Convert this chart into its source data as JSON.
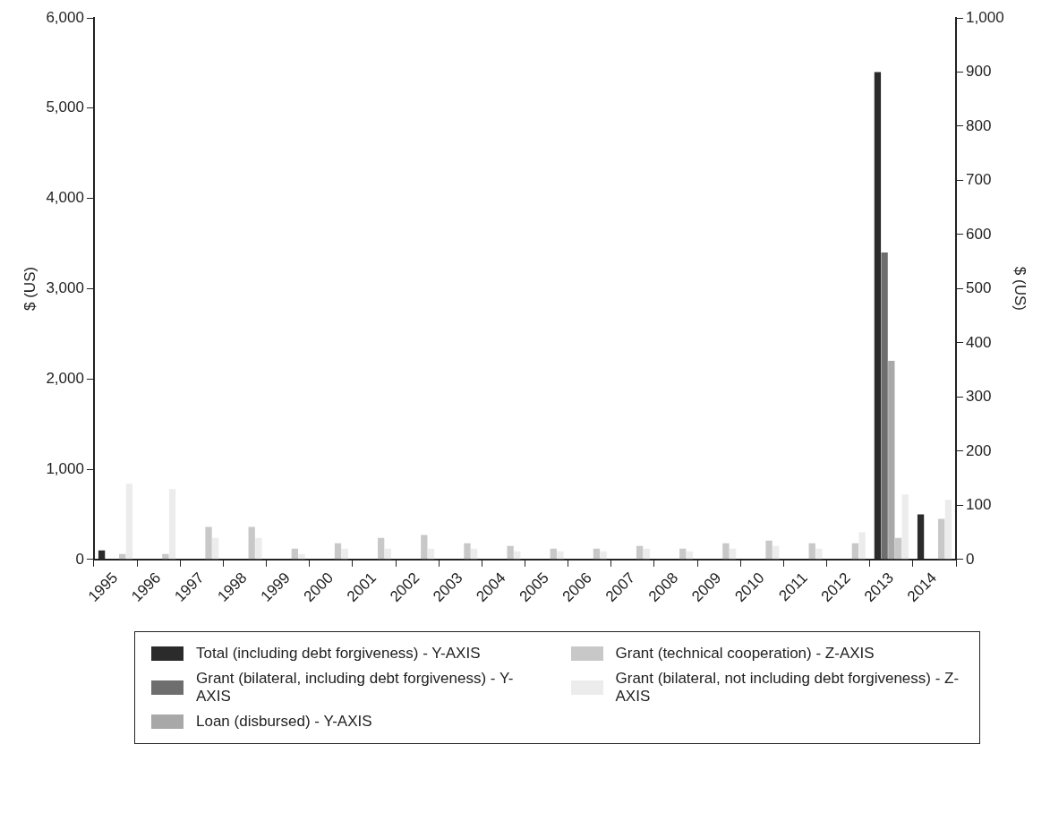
{
  "chart_data": {
    "type": "bar",
    "ylabel": "$ (US)",
    "y2label": "$ (US)",
    "categories": [
      "1995",
      "1996",
      "1997",
      "1998",
      "1999",
      "2000",
      "2001",
      "2002",
      "2003",
      "2004",
      "2005",
      "2006",
      "2007",
      "2008",
      "2009",
      "2010",
      "2011",
      "2012",
      "2013",
      "2014"
    ],
    "series": [
      {
        "name": "Total (including debt forgiveness) - Y-AXIS",
        "color": "#2b2b2b",
        "values": [
          100,
          0,
          0,
          0,
          0,
          0,
          0,
          0,
          0,
          0,
          0,
          0,
          0,
          0,
          0,
          0,
          0,
          0,
          5400,
          500
        ]
      },
      {
        "name": "Grant (bilateral, including debt forgiveness) - Y-AXIS",
        "color": "#6e6e6e",
        "values": [
          0,
          0,
          0,
          0,
          0,
          0,
          0,
          0,
          0,
          0,
          0,
          0,
          0,
          0,
          0,
          0,
          0,
          0,
          3400,
          0
        ]
      },
      {
        "name": "Loan (disbursed) - Y-AXIS",
        "color": "#a8a8a8",
        "values": [
          0,
          0,
          0,
          0,
          0,
          0,
          0,
          0,
          0,
          0,
          0,
          0,
          0,
          0,
          0,
          0,
          0,
          0,
          2200,
          0
        ]
      },
      {
        "name": "Grant (technical cooperation) - Z-AXIS",
        "color": "#c8c8c8",
        "axis": "y2",
        "values": [
          10,
          10,
          60,
          60,
          20,
          30,
          40,
          45,
          30,
          25,
          20,
          20,
          25,
          20,
          30,
          35,
          30,
          30,
          40,
          75
        ]
      },
      {
        "name": "Grant (bilateral, not including debt forgiveness) - Z-AXIS",
        "color": "#ececec",
        "axis": "y2",
        "values": [
          140,
          130,
          40,
          40,
          10,
          20,
          20,
          20,
          20,
          15,
          15,
          15,
          20,
          15,
          20,
          25,
          20,
          50,
          120,
          110
        ]
      }
    ],
    "ylim": [
      0,
      6000
    ],
    "yticks": [
      {
        "value": 0,
        "label": "0"
      },
      {
        "value": 1000,
        "label": "1,000"
      },
      {
        "value": 2000,
        "label": "2,000"
      },
      {
        "value": 3000,
        "label": "3,000"
      },
      {
        "value": 4000,
        "label": "4,000"
      },
      {
        "value": 5000,
        "label": "5,000"
      },
      {
        "value": 6000,
        "label": "6,000"
      }
    ],
    "y2lim": [
      0,
      1000
    ],
    "y2ticks": [
      0,
      100,
      200,
      300,
      400,
      500,
      600,
      700,
      800,
      900,
      {
        "value": 1000,
        "label": "1,000"
      }
    ],
    "grid": false,
    "legend": "bottom"
  }
}
